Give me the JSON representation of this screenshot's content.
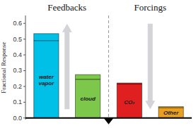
{
  "chart_data": {
    "type": "bar",
    "categories": [
      "water\nvapor",
      "cloud",
      "CO₂",
      "Other"
    ],
    "values": [
      0.535,
      0.275,
      0.222,
      0.072
    ],
    "inner_values": [
      0.49,
      0.245,
      0.215,
      0.065
    ],
    "colors": [
      "#00C0E8",
      "#7DC84A",
      "#E02020",
      "#E8A020"
    ],
    "y_label": "Fractional Response",
    "annotations": [
      "Feedbacks",
      "Forcings"
    ],
    "ylim": [
      -0.01,
      0.65
    ],
    "yticks": [
      {
        "value": 0.0,
        "label": "0.0"
      },
      0.1,
      0.2,
      0.3,
      0.4,
      0.5,
      0.6
    ],
    "grid": false
  }
}
